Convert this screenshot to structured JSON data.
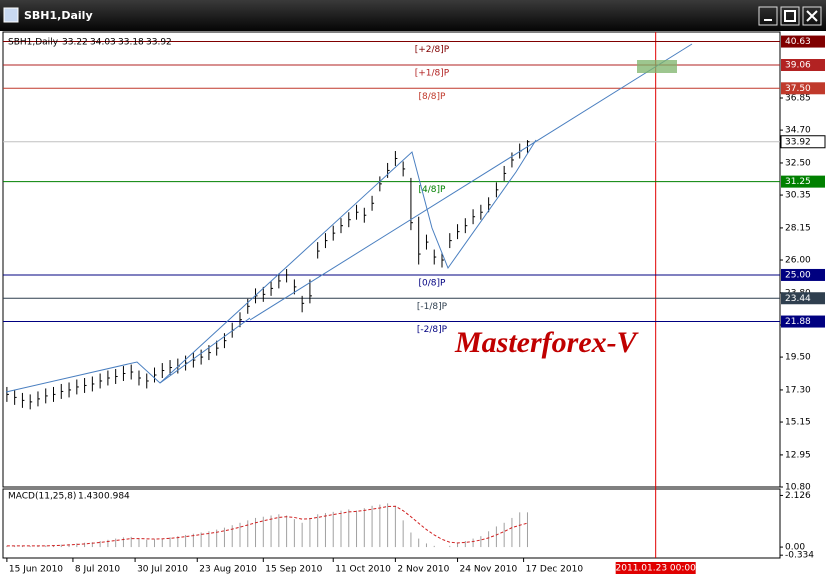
{
  "window": {
    "title": "SBH1,Daily"
  },
  "chart_data": [
    {
      "type": "ohlc",
      "symbol": "SBH1,Daily",
      "ohlc": [
        33.22,
        34.03,
        33.18,
        33.92
      ],
      "color": "#000000",
      "x": [
        0,
        2,
        4,
        6,
        8,
        10,
        12,
        14,
        16,
        18,
        20,
        22,
        24,
        26,
        28,
        30,
        32,
        34,
        36,
        38,
        40,
        42,
        44,
        46,
        48,
        50,
        52,
        54,
        56,
        58,
        60,
        62,
        64,
        66,
        68,
        70,
        72,
        74,
        76,
        78,
        80,
        82,
        84,
        86,
        88,
        90,
        92,
        94,
        96,
        98,
        100,
        102,
        104,
        106,
        108,
        110,
        112,
        114,
        116,
        118,
        120,
        122,
        124,
        126,
        128,
        130,
        132,
        134
      ],
      "highs": [
        17.5,
        17.3,
        17.1,
        17.0,
        17.2,
        17.4,
        17.5,
        17.7,
        17.8,
        18.0,
        18.1,
        18.2,
        18.4,
        18.6,
        18.7,
        18.9,
        19.0,
        18.6,
        18.4,
        18.8,
        19.1,
        19.3,
        19.4,
        19.6,
        19.8,
        20.0,
        20.3,
        20.6,
        21.1,
        21.8,
        22.5,
        23.4,
        24.1,
        24.2,
        24.6,
        25.1,
        25.4,
        24.7,
        23.6,
        24.7,
        27.2,
        27.8,
        28.3,
        28.8,
        29.2,
        29.7,
        29.5,
        30.3,
        31.6,
        32.5,
        33.3,
        32.6,
        31.5,
        28.9,
        27.7,
        26.7,
        26.5,
        27.8,
        28.4,
        28.8,
        29.4,
        29.7,
        30.2,
        31.2,
        32.3,
        33.2,
        33.8,
        34.03
      ],
      "lows": [
        16.5,
        16.3,
        16.1,
        16.0,
        16.2,
        16.4,
        16.5,
        16.7,
        16.8,
        17.0,
        17.1,
        17.2,
        17.4,
        17.6,
        17.7,
        17.9,
        18.0,
        17.6,
        17.4,
        17.8,
        18.1,
        18.3,
        18.4,
        18.6,
        18.8,
        19.0,
        19.3,
        19.6,
        20.1,
        20.8,
        21.5,
        22.4,
        23.1,
        23.2,
        23.6,
        24.1,
        24.5,
        23.7,
        22.5,
        23.1,
        26.1,
        26.8,
        27.3,
        27.8,
        28.2,
        28.7,
        28.5,
        29.3,
        30.6,
        31.5,
        32.3,
        31.6,
        28.0,
        25.7,
        26.7,
        25.7,
        25.5,
        26.8,
        27.4,
        27.8,
        28.4,
        28.7,
        29.2,
        30.2,
        31.3,
        32.2,
        32.8,
        33.18
      ],
      "closes": [
        17.0,
        16.8,
        16.6,
        16.5,
        16.7,
        16.9,
        17.0,
        17.2,
        17.3,
        17.5,
        17.6,
        17.7,
        17.9,
        18.1,
        18.2,
        18.4,
        18.5,
        18.1,
        17.9,
        18.3,
        18.6,
        18.8,
        18.9,
        19.1,
        19.3,
        19.5,
        19.8,
        20.1,
        20.6,
        21.3,
        22.0,
        22.9,
        23.6,
        23.7,
        24.1,
        24.6,
        25.0,
        24.2,
        23.1,
        23.6,
        26.6,
        27.3,
        27.8,
        28.3,
        28.7,
        29.2,
        29.0,
        29.8,
        31.1,
        32.0,
        32.8,
        32.1,
        28.5,
        26.4,
        27.2,
        26.2,
        26.0,
        27.3,
        27.9,
        28.3,
        28.9,
        29.2,
        29.7,
        30.7,
        31.8,
        32.7,
        33.3,
        33.92
      ],
      "xlim": [
        -1,
        199
      ],
      "ylim": [
        10.8,
        41.27
      ],
      "yticks": [
        36.85,
        {
          "value": 34.7,
          "label": "34.70"
        },
        {
          "value": 32.5,
          "label": "32.50"
        },
        30.35,
        28.15,
        {
          "value": 26,
          "label": "26.00"
        },
        {
          "value": 23.8,
          "label": "23.80"
        },
        21.65,
        {
          "value": 19.5,
          "label": "19.50"
        },
        {
          "value": 17.3,
          "label": "17.30"
        },
        15.15,
        12.95,
        {
          "value": 10.8,
          "label": "10.80"
        }
      ],
      "xticks": [
        {
          "value": 0,
          "label": "15 Jun 2010"
        },
        {
          "value": 17,
          "label": "8 Jul 2010"
        },
        {
          "value": 33,
          "label": "30 Jul 2010"
        },
        {
          "value": 49,
          "label": "23 Aug 2010"
        },
        {
          "value": 66,
          "label": "15 Sep 2010"
        },
        {
          "value": 84,
          "label": "11 Oct 2010"
        },
        {
          "value": 100,
          "label": "2 Nov 2010"
        },
        {
          "value": 116,
          "label": "24 Nov 2010"
        },
        {
          "value": 133,
          "label": "17 Dec 2010"
        }
      ],
      "levels": [
        {
          "label": "[+2/8]P",
          "value": 40.63,
          "color": "#800000"
        },
        {
          "label": "[+1/8]P",
          "value": 39.06,
          "color": "#b22222"
        },
        {
          "label": "[8/8]P",
          "value": 37.5,
          "value_label": "37.50",
          "color": "#c0392b"
        },
        {
          "label": "[4/8]P",
          "value": 31.25,
          "color": "#008000"
        },
        {
          "label": "[0/8]P",
          "value": 25,
          "value_label": "25.00",
          "color": "#000080"
        },
        {
          "label": "[-1/8]P",
          "value": 23.44,
          "color": "#2f3f4f"
        },
        {
          "label": "[-2/8]P",
          "value": 21.88,
          "color": "#000080"
        }
      ],
      "last_price": {
        "value": 33.92,
        "color": "#c0c0c0"
      },
      "vline": {
        "value": 167,
        "label": "2011.01.23 00:00",
        "color": "#e00000"
      },
      "watermark": "Masterforex-V"
    },
    {
      "type": "macd",
      "title": "MACD(11,25,8)",
      "readout": [
        {
          "value": 1.43,
          "label": "1.430"
        },
        0.984
      ],
      "x": [
        0,
        2,
        4,
        6,
        8,
        10,
        12,
        14,
        16,
        18,
        20,
        22,
        24,
        26,
        28,
        30,
        32,
        34,
        36,
        38,
        40,
        42,
        44,
        46,
        48,
        50,
        52,
        54,
        56,
        58,
        60,
        62,
        64,
        66,
        68,
        70,
        72,
        74,
        76,
        78,
        80,
        82,
        84,
        86,
        88,
        90,
        92,
        94,
        96,
        98,
        100,
        102,
        104,
        106,
        108,
        110,
        112,
        114,
        116,
        118,
        120,
        122,
        124,
        126,
        128,
        130,
        132,
        134
      ],
      "series": [
        {
          "name": "MACD",
          "color": "#a0a0a0",
          "values": [
            0.05,
            0.06,
            0.05,
            0.04,
            0.05,
            0.06,
            0.08,
            0.1,
            0.12,
            0.15,
            0.18,
            0.2,
            0.25,
            0.3,
            0.35,
            0.4,
            0.42,
            0.35,
            0.3,
            0.32,
            0.35,
            0.4,
            0.45,
            0.5,
            0.55,
            0.6,
            0.65,
            0.72,
            0.8,
            0.9,
            1.0,
            1.1,
            1.2,
            1.25,
            1.3,
            1.35,
            1.3,
            1.15,
            1.0,
            1.2,
            1.35,
            1.4,
            1.45,
            1.5,
            1.55,
            1.5,
            1.6,
            1.7,
            1.75,
            1.8,
            1.7,
            1.1,
            0.6,
            0.35,
            0.15,
            0.05,
            0.0,
            0.05,
            0.15,
            0.25,
            0.35,
            0.45,
            0.65,
            0.85,
            1.0,
            1.2,
            1.43,
            1.43
          ]
        },
        {
          "name": "Signal",
          "color": "#d02020",
          "values": [
            0.05,
            0.05,
            0.05,
            0.05,
            0.05,
            0.05,
            0.06,
            0.07,
            0.09,
            0.11,
            0.13,
            0.16,
            0.19,
            0.23,
            0.27,
            0.31,
            0.35,
            0.35,
            0.34,
            0.33,
            0.34,
            0.36,
            0.39,
            0.43,
            0.47,
            0.52,
            0.56,
            0.61,
            0.67,
            0.74,
            0.82,
            0.91,
            1.0,
            1.08,
            1.15,
            1.22,
            1.25,
            1.22,
            1.15,
            1.17,
            1.22,
            1.28,
            1.34,
            1.39,
            1.45,
            1.47,
            1.51,
            1.56,
            1.61,
            1.67,
            1.68,
            1.5,
            1.25,
            0.98,
            0.72,
            0.5,
            0.32,
            0.2,
            0.17,
            0.19,
            0.23,
            0.29,
            0.38,
            0.5,
            0.64,
            0.8,
            0.9,
            0.984
          ]
        }
      ],
      "xlim": [
        -1,
        199
      ],
      "ylim": [
        -0.45,
        2.35
      ],
      "yticks": [
        2.126,
        {
          "value": 0,
          "label": "0.00"
        },
        -0.334
      ]
    }
  ]
}
